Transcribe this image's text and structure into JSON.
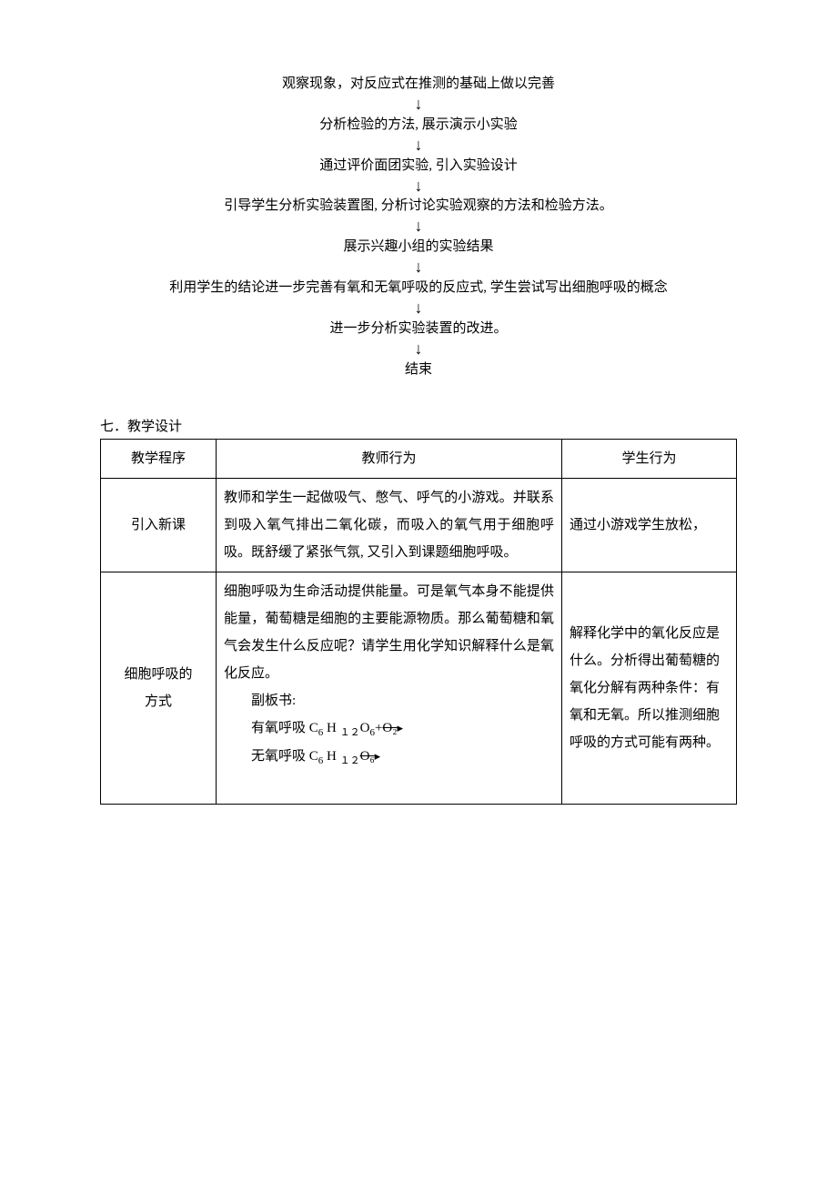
{
  "flowchart": {
    "steps": [
      "观察现象，对反应式在推测的基础上做以完善",
      "分析检验的方法, 展示演示小实验",
      "通过评价面团实验, 引入实验设计",
      "引导学生分析实验装置图, 分析讨论实验观察的方法和检验方法。",
      "展示兴趣小组的实验结果",
      "利用学生的结论进一步完善有氧和无氧呼吸的反应式, 学生尝试写出细胞呼吸的概念",
      "进一步分析实验装置的改进。",
      "结束"
    ],
    "arrow_glyph": "↓"
  },
  "section_heading": "七．教学设计",
  "table": {
    "headers": {
      "procedure": "教学程序",
      "teacher": "教师行为",
      "student": "学生行为"
    },
    "rows": [
      {
        "procedure": "引入新课",
        "teacher": "教师和学生一起做吸气、憋气、呼气的小游戏。并联系到吸入氧气排出二氧化碳，而吸入的氧气用于细胞呼吸。既舒缓了紧张气氛, 又引入到课题细胞呼吸。",
        "student": "通过小游戏学生放松，"
      },
      {
        "procedure_line1": "细胞呼吸的",
        "procedure_line2": "方式",
        "teacher_p1": "细胞呼吸为生命活动提供能量。可是氧气本身不能提供能量，葡萄糖是细胞的主要能源物质。那么葡萄糖和氧气会发生什么反应呢？请学生用化学知识解释什么是氧化反应。",
        "teacher_sub_label": "副板书:",
        "teacher_aerobic_prefix": "有氧呼吸 C",
        "teacher_anaerobic_prefix": "无氧呼吸 C",
        "formula_6": "6",
        "formula_H": " H ",
        "formula_12": "１２",
        "formula_O6": "O",
        "formula_plus": "+",
        "formula_O2_strike": "O₂",
        "formula_C6_strike": "O₆",
        "arrow": "▸",
        "student": "解释化学中的氧化反应是什么。分析得出葡萄糖的氧化分解有两种条件：有氧和无氧。所以推测细胞呼吸的方式可能有两种。"
      }
    ]
  }
}
